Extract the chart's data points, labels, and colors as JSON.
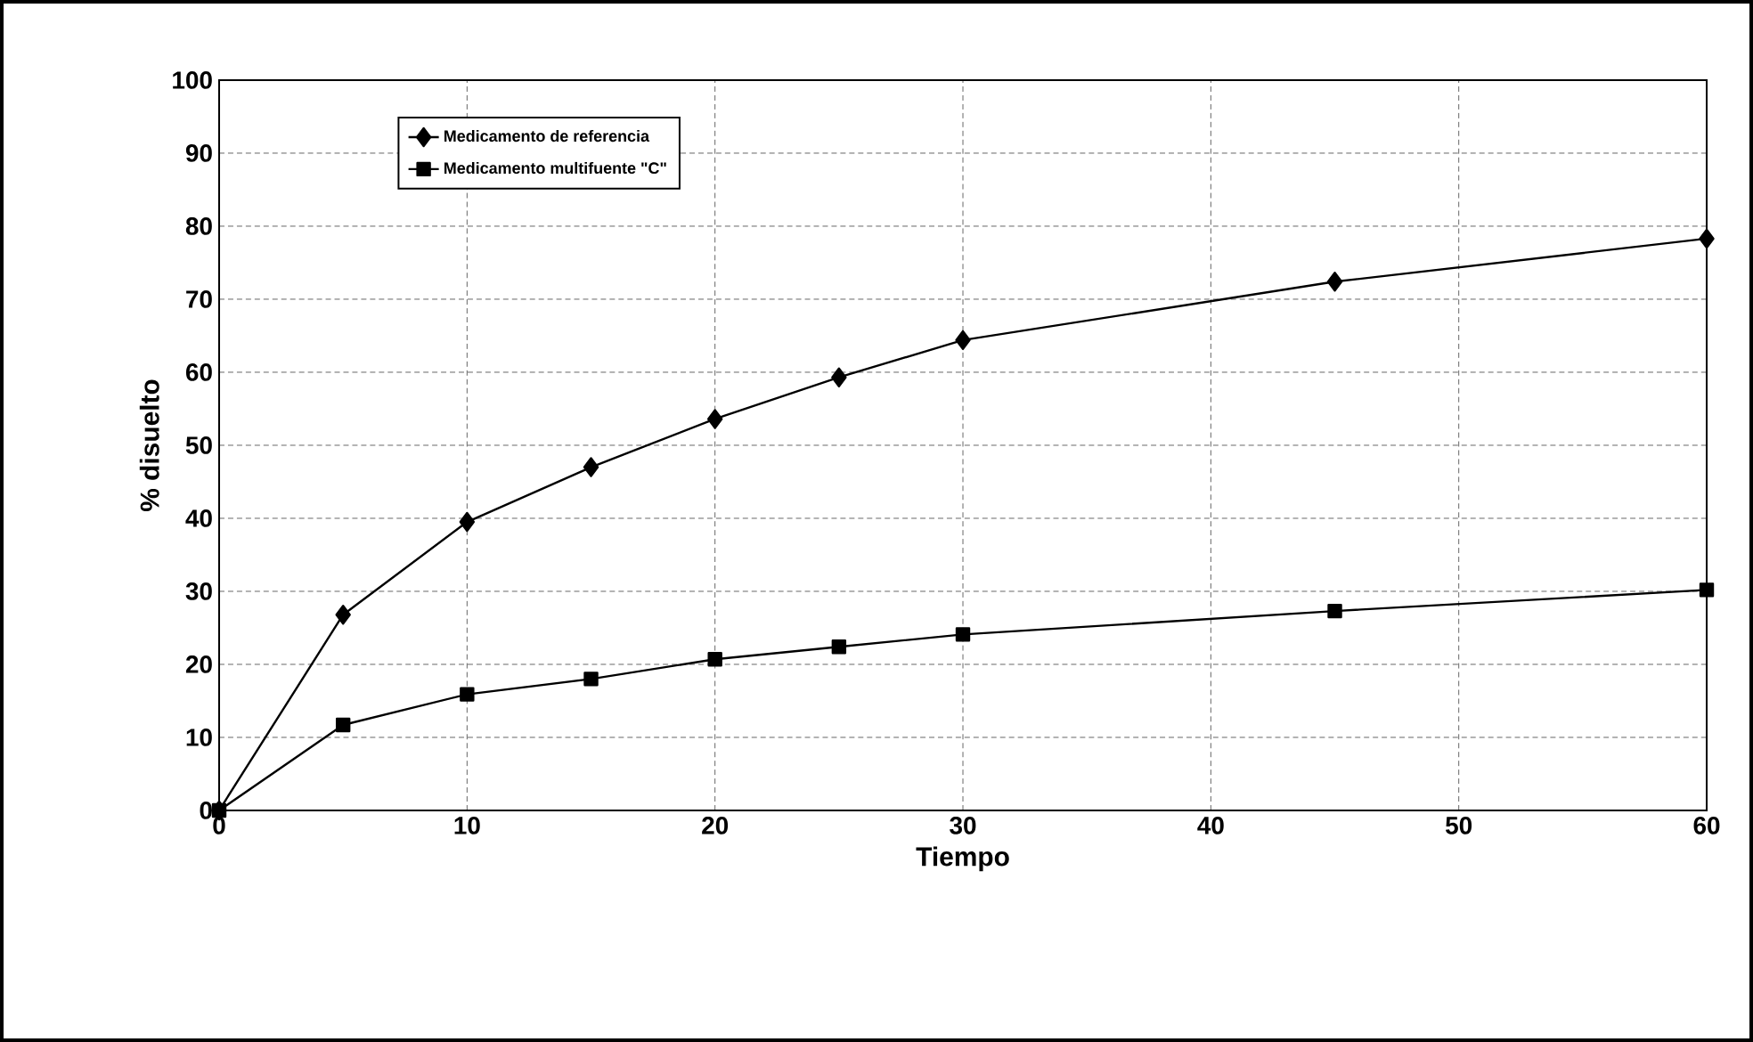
{
  "chart_data": {
    "type": "line",
    "xlabel": "Tiempo",
    "ylabel": "% disuelto",
    "x": [
      0,
      5,
      10,
      15,
      20,
      25,
      30,
      45,
      60
    ],
    "series": [
      {
        "name": "Medicamento de referencia",
        "color": "#000000",
        "marker": "diamond",
        "values": [
          0,
          26.8,
          39.5,
          47,
          53.6,
          59.3,
          64.4,
          72.4,
          78.3
        ]
      },
      {
        "name": "Medicamento multifuente \"C\"",
        "color": "#000000",
        "marker": "square",
        "values": [
          0,
          11.7,
          15.9,
          18,
          20.7,
          22.4,
          24.1,
          27.3,
          30.2
        ]
      }
    ],
    "xlim": [
      0,
      60
    ],
    "ylim": [
      0,
      100
    ],
    "xticks": [
      0,
      10,
      20,
      30,
      40,
      50,
      60
    ],
    "yticks": [
      0,
      10,
      20,
      30,
      40,
      50,
      60,
      70,
      80,
      90,
      100
    ],
    "grid": true,
    "legend": "top left",
    "line_style": "solid"
  }
}
